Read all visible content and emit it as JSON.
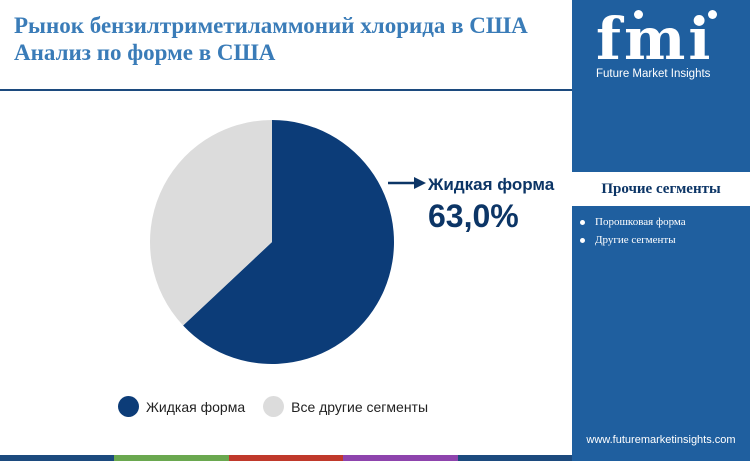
{
  "header": {
    "title_line1": "Рынок бензилтриметиламмоний хлорида в США",
    "title_line2": "Анализ по форме в США"
  },
  "chart_data": {
    "type": "pie",
    "categories": [
      "Жидкая форма",
      "Все другие сегменты"
    ],
    "values": [
      63.0,
      37.0
    ],
    "colors": [
      "#0c3c78",
      "#dcdcdc"
    ],
    "callout": {
      "label": "Жидкая форма",
      "value": "63,0%"
    },
    "legend": {
      "placement": "bottom"
    }
  },
  "legend": {
    "items": [
      {
        "label": "Жидкая форма",
        "color": "#0c3c78"
      },
      {
        "label": "Все другие сегменты",
        "color": "#dcdcdc"
      }
    ]
  },
  "sidebar": {
    "brand": "fmi",
    "brand_sub": "Future Market Insights",
    "others_title": "Прочие сегменты",
    "others_items": [
      "Порошковая форма",
      "Другие сегменты"
    ],
    "website": "www.futuremarketinsights.com"
  },
  "colors": {
    "title": "#3a7cb8",
    "sidebar_bg": "#1f5f9f",
    "accent_dark": "#0c3566",
    "strip": [
      "#1c4a7e",
      "#6aa84f",
      "#c0392b",
      "#8e44ad",
      "#1c4a7e"
    ]
  }
}
